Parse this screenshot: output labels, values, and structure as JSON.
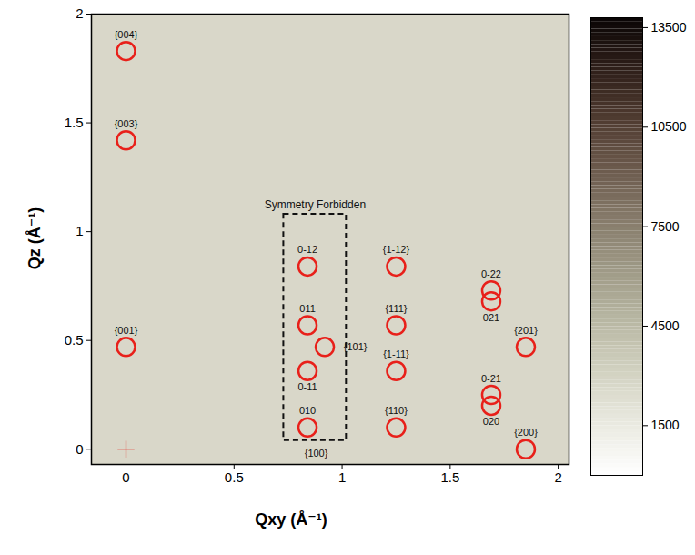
{
  "chart_data": {
    "type": "scatter",
    "x_label": "Qxy (Å⁻¹)",
    "y_label": "Qz (Å⁻¹)",
    "xlim": [
      -0.16,
      2.05
    ],
    "ylim": [
      -0.07,
      2.0
    ],
    "xticks": [
      0,
      0.5,
      1,
      1.5,
      2
    ],
    "yticks": [
      0,
      0.5,
      1,
      1.5,
      2
    ],
    "marker": "circle",
    "color": "#e8201a",
    "data_labels": true,
    "labels": [
      "{004}",
      "{003}",
      "{001}",
      "0-12",
      "011",
      "0-11",
      "010",
      "{101}",
      "{1-12}",
      "{111}",
      "{1-11}",
      "{110}",
      "0-22",
      "021",
      "{201}",
      "0-21",
      "020",
      "{200}"
    ],
    "x": [
      0,
      0,
      0,
      0.84,
      0.84,
      0.84,
      0.84,
      0.92,
      1.25,
      1.25,
      1.25,
      1.25,
      1.69,
      1.69,
      1.85,
      1.69,
      1.69,
      1.85
    ],
    "values": [
      1.83,
      1.42,
      0.47,
      0.84,
      0.57,
      0.36,
      0.1,
      0.47,
      0.84,
      0.57,
      0.36,
      0.1,
      0.73,
      0.68,
      0.47,
      0.25,
      0.2,
      0.0
    ],
    "annotations": [
      {
        "text": "{100}",
        "x": 0.88,
        "y": -0.02
      }
    ],
    "box": {
      "label": "Symmetry Forbidden",
      "x": [
        0.73,
        1.02
      ],
      "y": [
        0.04,
        1.08
      ],
      "line_style": "dashed"
    },
    "beam_center": {
      "x": 0,
      "y": 0,
      "marker": "plus"
    },
    "colorbar": {
      "range": [
        0,
        13800
      ],
      "ticks": [
        1500,
        4500,
        7500,
        10500,
        13500
      ],
      "colors": [
        "#ffffff",
        "#d9d9c8",
        "#a9a892",
        "#7d6f60",
        "#4b3328",
        "#0a0505"
      ]
    }
  }
}
